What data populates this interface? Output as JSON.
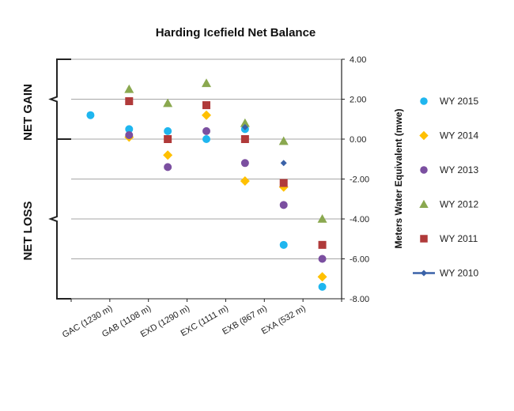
{
  "chart_data": {
    "type": "scatter",
    "title": "Harding Icefield Net Balance",
    "ylabel": "Meters Water Equivalent (mwe)",
    "y_axis_side": "right",
    "ylim": [
      -8,
      4
    ],
    "yticks": [
      "4.00",
      "2.00",
      "0.00",
      "-2.00",
      "-4.00",
      "-6.00",
      "-8.00"
    ],
    "grid": true,
    "legend_position": "right",
    "categories": [
      "GAC (1230 m)",
      "GAB (1108 m)",
      "EXD (1290 m)",
      "EXC (1111 m)",
      "EXB (867 m)",
      "EXA (532 m)"
    ],
    "side_labels": {
      "gain": "NET GAIN",
      "loss": "NET LOSS"
    },
    "series": [
      {
        "name": "WY 2015",
        "marker": "circle",
        "color": "#1fb6ef",
        "points": [
          {
            "x": 0,
            "y": 1.2
          },
          {
            "x": 1,
            "y": 0.5
          },
          {
            "x": 2,
            "y": 0.4
          },
          {
            "x": 3,
            "y": 0.0
          },
          {
            "x": 4,
            "y": 0.5
          },
          {
            "x": 5,
            "y": -5.3
          },
          {
            "x": 6,
            "y": -7.4
          }
        ]
      },
      {
        "name": "WY 2014",
        "marker": "diamond",
        "color": "#ffc000",
        "points": [
          {
            "x": 1,
            "y": 0.1
          },
          {
            "x": 2,
            "y": -0.8
          },
          {
            "x": 3,
            "y": 1.2
          },
          {
            "x": 4,
            "y": -2.1
          },
          {
            "x": 5,
            "y": -2.4
          },
          {
            "x": 6,
            "y": -6.9
          }
        ]
      },
      {
        "name": "WY 2013",
        "marker": "circle",
        "color": "#7b4fa0",
        "points": [
          {
            "x": 1,
            "y": 0.2
          },
          {
            "x": 2,
            "y": -1.4
          },
          {
            "x": 3,
            "y": 0.4
          },
          {
            "x": 4,
            "y": -1.2
          },
          {
            "x": 5,
            "y": -3.3
          },
          {
            "x": 6,
            "y": -6.0
          }
        ]
      },
      {
        "name": "WY 2012",
        "marker": "triangle",
        "color": "#8aa84f",
        "points": [
          {
            "x": 1,
            "y": 2.5
          },
          {
            "x": 2,
            "y": 1.8
          },
          {
            "x": 3,
            "y": 2.8
          },
          {
            "x": 4,
            "y": 0.8
          },
          {
            "x": 5,
            "y": -0.1
          },
          {
            "x": 6,
            "y": -4.0
          }
        ]
      },
      {
        "name": "WY 2011",
        "marker": "square",
        "color": "#b03a3a",
        "points": [
          {
            "x": 1,
            "y": 1.9
          },
          {
            "x": 2,
            "y": 0.0
          },
          {
            "x": 3,
            "y": 1.7
          },
          {
            "x": 4,
            "y": 0.0
          },
          {
            "x": 5,
            "y": -2.2
          },
          {
            "x": 6,
            "y": -5.3
          }
        ]
      },
      {
        "name": "WY 2010",
        "marker": "small-diamond-line",
        "color": "#3a62a8",
        "points": [
          {
            "x": 4,
            "y": 0.6
          },
          {
            "x": 5,
            "y": -1.2
          }
        ]
      }
    ]
  }
}
